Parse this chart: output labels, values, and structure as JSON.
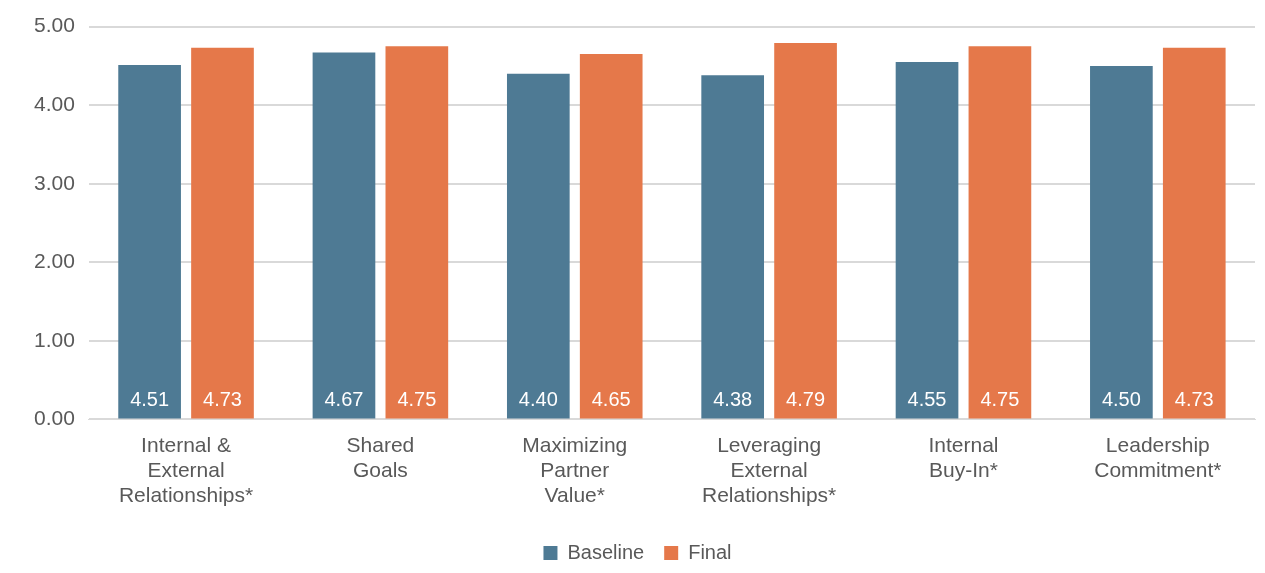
{
  "chart_data": {
    "type": "bar",
    "categories": [
      "Internal & External Relationships*",
      "Shared Goals",
      "Maximizing Partner Value*",
      "Leveraging External Relationships*",
      "Internal Buy-In*",
      "Leadership Commitment*"
    ],
    "series": [
      {
        "name": "Baseline",
        "color": "#4e7a94",
        "values": [
          4.51,
          4.67,
          4.4,
          4.38,
          4.55,
          4.5
        ],
        "value_labels": [
          "4.51",
          "4.67",
          "4.40",
          "4.38",
          "4.55",
          "4.50"
        ]
      },
      {
        "name": "Final",
        "color": "#e5784a",
        "values": [
          4.73,
          4.75,
          4.65,
          4.79,
          4.75,
          4.73
        ],
        "value_labels": [
          "4.73",
          "4.75",
          "4.65",
          "4.79",
          "4.75",
          "4.73"
        ]
      }
    ],
    "ylim": [
      0,
      5
    ],
    "yticks": [
      {
        "value": 0,
        "label": "0.00"
      },
      {
        "value": 1,
        "label": "1.00"
      },
      {
        "value": 2,
        "label": "2.00"
      },
      {
        "value": 3,
        "label": "3.00"
      },
      {
        "value": 4,
        "label": "4.00"
      },
      {
        "value": 5,
        "label": "5.00"
      }
    ],
    "grid": "y",
    "legend": "bottom"
  }
}
